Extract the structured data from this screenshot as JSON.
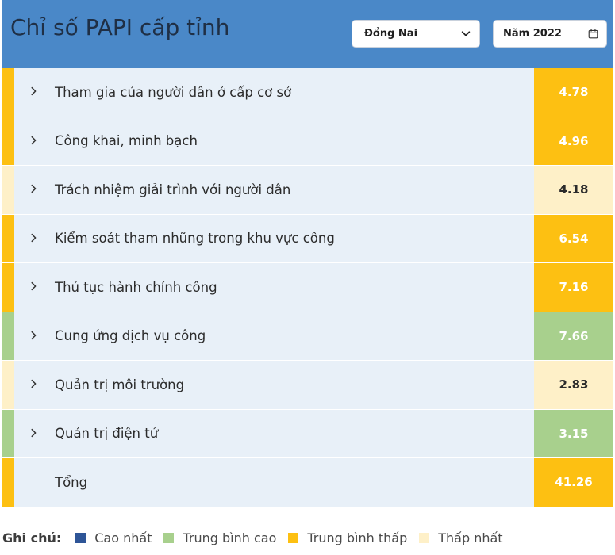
{
  "header": {
    "title": "Chỉ số PAPI cấp tỉnh",
    "province_select": {
      "value": "Đồng Nai",
      "icon": "chevron-down-icon"
    },
    "year_picker": {
      "value": "Năm 2022",
      "icon": "calendar-icon"
    },
    "background_color": "#4a88c8"
  },
  "rows": [
    {
      "label": "Tham gia của người dân ở cấp cơ sở",
      "score": "4.78",
      "level": "Trung bình thấp",
      "color": "#fdc012",
      "text_color": "#ffffff",
      "expandable": true
    },
    {
      "label": "Công khai, minh bạch",
      "score": "4.96",
      "level": "Trung bình thấp",
      "color": "#fdc012",
      "text_color": "#ffffff",
      "expandable": true
    },
    {
      "label": "Trách nhiệm giải trình với người dân",
      "score": "4.18",
      "level": "Thấp nhất",
      "color": "#fef0c8",
      "text_color": "#2b2b2b",
      "expandable": true
    },
    {
      "label": "Kiểm soát tham nhũng trong khu vực công",
      "score": "6.54",
      "level": "Trung bình thấp",
      "color": "#fdc012",
      "text_color": "#ffffff",
      "expandable": true
    },
    {
      "label": "Thủ tục hành chính công",
      "score": "7.16",
      "level": "Trung bình thấp",
      "color": "#fdc012",
      "text_color": "#ffffff",
      "expandable": true
    },
    {
      "label": "Cung ứng dịch vụ công",
      "score": "7.66",
      "level": "Trung bình cao",
      "color": "#a8d08d",
      "text_color": "#ffffff",
      "expandable": true
    },
    {
      "label": "Quản trị môi trường",
      "score": "2.83",
      "level": "Thấp nhất",
      "color": "#fef0c8",
      "text_color": "#2b2b2b",
      "expandable": true
    },
    {
      "label": "Quản trị điện tử",
      "score": "3.15",
      "level": "Trung bình cao",
      "color": "#a8d08d",
      "text_color": "#ffffff",
      "expandable": true
    },
    {
      "label": "Tổng",
      "score": "41.26",
      "level": "Trung bình thấp",
      "color": "#fdc012",
      "text_color": "#ffffff",
      "expandable": false
    }
  ],
  "legend": {
    "lead": "Ghi chú:",
    "items": [
      {
        "label": "Cao nhất",
        "color": "#2e5597"
      },
      {
        "label": "Trung bình cao",
        "color": "#a8d08d"
      },
      {
        "label": "Trung bình thấp",
        "color": "#fdc012"
      },
      {
        "label": "Thấp nhất",
        "color": "#fef0c8"
      }
    ]
  }
}
